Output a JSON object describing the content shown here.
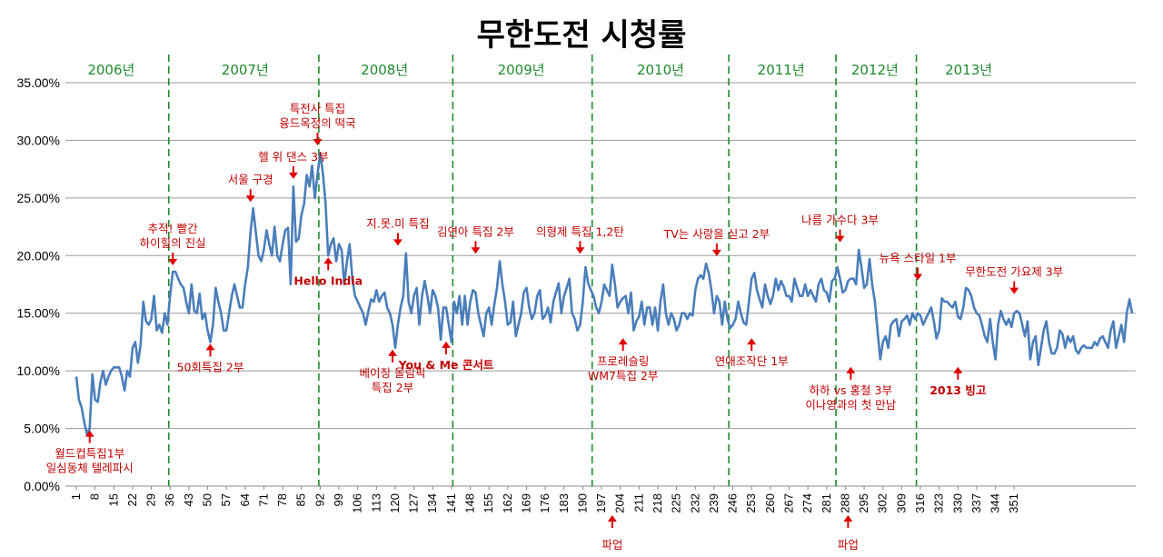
{
  "chart_data": {
    "type": "line",
    "title": "무한도전 시청률",
    "xlabel": "",
    "ylabel": "",
    "ylim": [
      0,
      0.35
    ],
    "y_ticks": [
      "0.00%",
      "5.00%",
      "10.00%",
      "15.00%",
      "20.00%",
      "25.00%",
      "30.00%",
      "35.00%"
    ],
    "x_tick_labels": [
      "1",
      "8",
      "15",
      "22",
      "29",
      "36",
      "43",
      "50",
      "57",
      "64",
      "71",
      "78",
      "85",
      "92",
      "99",
      "106",
      "113",
      "120",
      "127",
      "134",
      "141",
      "148",
      "155",
      "162",
      "169",
      "176",
      "183",
      "190",
      "197",
      "204",
      "211",
      "218",
      "225",
      "232",
      "239",
      "246",
      "253",
      "260",
      "267",
      "274",
      "281",
      "288",
      "295",
      "302",
      "309",
      "316",
      "323",
      "330",
      "337",
      "344",
      "351"
    ],
    "grid": "horizontal",
    "line_color": "#4a7ebb",
    "arrow_color": "#e00000",
    "series": [
      {
        "name": "시청률",
        "x_start": 1,
        "x_step": 1,
        "values": [
          0.095,
          0.075,
          0.068,
          0.055,
          0.045,
          0.05,
          0.097,
          0.075,
          0.073,
          0.09,
          0.1,
          0.088,
          0.095,
          0.1,
          0.103,
          0.103,
          0.103,
          0.095,
          0.083,
          0.1,
          0.095,
          0.12,
          0.125,
          0.107,
          0.123,
          0.16,
          0.143,
          0.14,
          0.145,
          0.165,
          0.135,
          0.14,
          0.133,
          0.15,
          0.14,
          0.165,
          0.186,
          0.186,
          0.18,
          0.175,
          0.172,
          0.16,
          0.15,
          0.175,
          0.152,
          0.15,
          0.167,
          0.145,
          0.15,
          0.135,
          0.125,
          0.14,
          0.172,
          0.16,
          0.15,
          0.135,
          0.135,
          0.15,
          0.165,
          0.175,
          0.165,
          0.155,
          0.155,
          0.175,
          0.19,
          0.22,
          0.241,
          0.22,
          0.2,
          0.195,
          0.205,
          0.222,
          0.21,
          0.2,
          0.225,
          0.2,
          0.195,
          0.21,
          0.222,
          0.224,
          0.175,
          0.26,
          0.212,
          0.215,
          0.235,
          0.245,
          0.27,
          0.26,
          0.278,
          0.25,
          0.27,
          0.289,
          0.272,
          0.245,
          0.2,
          0.21,
          0.215,
          0.195,
          0.21,
          0.205,
          0.175,
          0.195,
          0.21,
          0.18,
          0.165,
          0.16,
          0.155,
          0.15,
          0.14,
          0.152,
          0.162,
          0.16,
          0.17,
          0.16,
          0.165,
          0.168,
          0.155,
          0.15,
          0.14,
          0.12,
          0.14,
          0.155,
          0.165,
          0.202,
          0.16,
          0.15,
          0.165,
          0.172,
          0.14,
          0.165,
          0.178,
          0.165,
          0.15,
          0.17,
          0.165,
          0.155,
          0.127,
          0.155,
          0.155,
          0.14,
          0.125,
          0.16,
          0.15,
          0.165,
          0.14,
          0.165,
          0.14,
          0.16,
          0.17,
          0.168,
          0.15,
          0.14,
          0.13,
          0.15,
          0.155,
          0.14,
          0.158,
          0.172,
          0.195,
          0.175,
          0.16,
          0.14,
          0.142,
          0.16,
          0.13,
          0.14,
          0.15,
          0.168,
          0.172,
          0.155,
          0.145,
          0.15,
          0.165,
          0.17,
          0.145,
          0.148,
          0.155,
          0.142,
          0.16,
          0.168,
          0.176,
          0.15,
          0.165,
          0.172,
          0.18,
          0.15,
          0.145,
          0.135,
          0.14,
          0.16,
          0.19,
          0.176,
          0.17,
          0.165,
          0.155,
          0.15,
          0.16,
          0.175,
          0.17,
          0.165,
          0.192,
          0.175,
          0.155,
          0.16,
          0.163,
          0.165,
          0.15,
          0.168,
          0.135,
          0.143,
          0.147,
          0.16,
          0.14,
          0.155,
          0.155,
          0.14,
          0.155,
          0.135,
          0.16,
          0.175,
          0.15,
          0.14,
          0.15,
          0.145,
          0.135,
          0.14,
          0.15,
          0.15,
          0.145,
          0.15,
          0.148,
          0.17,
          0.18,
          0.183,
          0.18,
          0.193,
          0.185,
          0.17,
          0.15,
          0.165,
          0.16,
          0.14,
          0.16,
          0.145,
          0.137,
          0.14,
          0.145,
          0.16,
          0.15,
          0.142,
          0.14,
          0.16,
          0.18,
          0.185,
          0.17,
          0.162,
          0.155,
          0.175,
          0.165,
          0.158,
          0.165,
          0.18,
          0.17,
          0.178,
          0.173,
          0.165,
          0.165,
          0.16,
          0.18,
          0.172,
          0.165,
          0.165,
          0.175,
          0.165,
          0.17,
          0.165,
          0.16,
          0.175,
          0.18,
          0.17,
          0.168,
          0.16,
          0.178,
          0.18,
          0.19,
          0.18,
          0.168,
          0.17,
          0.178,
          0.18,
          0.18,
          0.175,
          0.205,
          0.19,
          0.172,
          0.175,
          0.197,
          0.175,
          0.16,
          0.135,
          0.11,
          0.125,
          0.13,
          0.12,
          0.14,
          0.143,
          0.145,
          0.13,
          0.143,
          0.145,
          0.148,
          0.14,
          0.15,
          0.145,
          0.15,
          0.148,
          0.14,
          0.145,
          0.15,
          0.155,
          0.143,
          0.128,
          0.135,
          0.163,
          0.16,
          0.16,
          0.157,
          0.155,
          0.16,
          0.147,
          0.145,
          0.155,
          0.172,
          0.17,
          0.165,
          0.155,
          0.15,
          0.148,
          0.14,
          0.13,
          0.125,
          0.145,
          0.125,
          0.11,
          0.14,
          0.152,
          0.145,
          0.14,
          0.145,
          0.138,
          0.15,
          0.152,
          0.15,
          0.14,
          0.13,
          0.143,
          0.11,
          0.125,
          0.13,
          0.105,
          0.12,
          0.135,
          0.143,
          0.125,
          0.115,
          0.115,
          0.12,
          0.135,
          0.132,
          0.12,
          0.13,
          0.125,
          0.13,
          0.118,
          0.115,
          0.12,
          0.122,
          0.12,
          0.12,
          0.12,
          0.125,
          0.122,
          0.128,
          0.13,
          0.125,
          0.12,
          0.135,
          0.143,
          0.12,
          0.13,
          0.14,
          0.125,
          0.15,
          0.162,
          0.15
        ]
      }
    ],
    "year_dividers_x": [
      35.5,
      91.5,
      141.5,
      193.5,
      244.5,
      284.5,
      314.5
    ],
    "years": [
      {
        "label": "2006년",
        "x_center": 14
      },
      {
        "label": "2007년",
        "x_center": 64
      },
      {
        "label": "2008년",
        "x_center": 116
      },
      {
        "label": "2009년",
        "x_center": 167
      },
      {
        "label": "2010년",
        "x_center": 219
      },
      {
        "label": "2011년",
        "x_center": 264
      },
      {
        "label": "2012년",
        "x_center": 299
      },
      {
        "label": "2013년",
        "x_center": 334
      }
    ],
    "annotations": [
      {
        "lines": [
          "월드컵특집1부",
          "일심동체 텔레파시"
        ],
        "x": 6,
        "y": 0.05,
        "placement": "below"
      },
      {
        "lines": [
          "추적! 빨간",
          "하이힐의 진실"
        ],
        "x": 37,
        "y": 0.19,
        "placement": "above"
      },
      {
        "lines": [
          "50회특집 2부"
        ],
        "x": 51,
        "y": 0.125,
        "placement": "below"
      },
      {
        "lines": [
          "서울 구경"
        ],
        "x": 66,
        "y": 0.245,
        "placement": "above"
      },
      {
        "lines": [
          "헬 위 댄스 3부"
        ],
        "x": 82,
        "y": 0.265,
        "placement": "above"
      },
      {
        "lines": [
          "특전사 특집",
          "융드옥정의 떡국"
        ],
        "x": 91,
        "y": 0.294,
        "placement": "above"
      },
      {
        "lines": [
          "Hello India"
        ],
        "x": 95,
        "y": 0.2,
        "placement": "below",
        "bold": true
      },
      {
        "lines": [
          "지.못.미 특집"
        ],
        "x": 121,
        "y": 0.207,
        "placement": "above"
      },
      {
        "lines": [
          "베이징 올림픽",
          "특집 2부"
        ],
        "x": 119,
        "y": 0.12,
        "placement": "below"
      },
      {
        "lines": [
          "김연아 특집 2부"
        ],
        "x": 150,
        "y": 0.2,
        "placement": "above"
      },
      {
        "lines": [
          "You & Me 콘서트"
        ],
        "x": 139,
        "y": 0.127,
        "placement": "below",
        "bold": true
      },
      {
        "lines": [
          "의형제 특집 1,2탄"
        ],
        "x": 189,
        "y": 0.2,
        "placement": "above"
      },
      {
        "lines": [
          "프로레슬링",
          "WM7특집 2부"
        ],
        "x": 205,
        "y": 0.13,
        "placement": "below"
      },
      {
        "lines": [
          "TV는 사랑을 싣고 2부"
        ],
        "x": 240,
        "y": 0.198,
        "placement": "above"
      },
      {
        "lines": [
          "연애조작단 1부"
        ],
        "x": 253,
        "y": 0.13,
        "placement": "below"
      },
      {
        "lines": [
          "나름 가수다 3부"
        ],
        "x": 286,
        "y": 0.21,
        "placement": "above"
      },
      {
        "lines": [
          "하하 vs 홍철 3부",
          "이나영과의 첫 만남"
        ],
        "x": 290,
        "y": 0.105,
        "placement": "below"
      },
      {
        "lines": [
          "뉴욕 스타일 1부"
        ],
        "x": 315,
        "y": 0.177,
        "placement": "above"
      },
      {
        "lines": [
          "무한도전 가요제 3부"
        ],
        "x": 351,
        "y": 0.165,
        "placement": "above"
      },
      {
        "lines": [
          "2013 빙고"
        ],
        "x": 330,
        "y": 0.105,
        "placement": "below",
        "bold": true
      },
      {
        "lines": [
          "파업"
        ],
        "x": 201,
        "y": 0,
        "placement": "axis"
      },
      {
        "lines": [
          "파업"
        ],
        "x": 289,
        "y": 0,
        "placement": "axis"
      }
    ]
  }
}
